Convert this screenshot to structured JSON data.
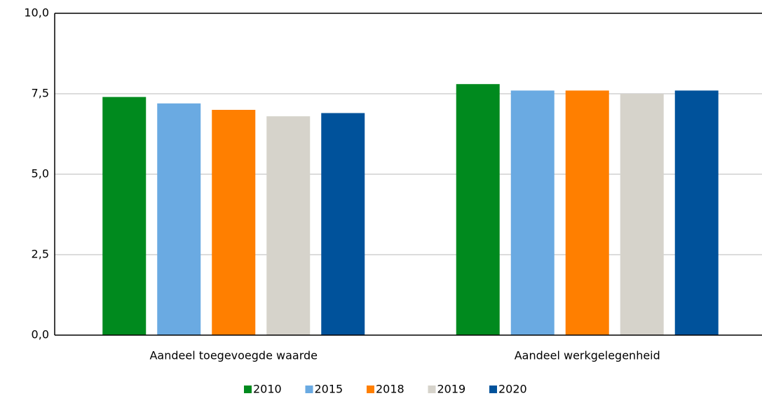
{
  "chart_data": {
    "type": "bar",
    "categories": [
      "Aandeel toegevoegde waarde",
      "Aandeel werkgelegenheid"
    ],
    "series": [
      {
        "name": "2010",
        "color": "#008a1e",
        "values": [
          7.4,
          7.8
        ]
      },
      {
        "name": "2015",
        "color": "#6aaae2",
        "values": [
          7.2,
          7.6
        ]
      },
      {
        "name": "2018",
        "color": "#ff7f00",
        "values": [
          7.0,
          7.6
        ]
      },
      {
        "name": "2019",
        "color": "#d6d3cb",
        "values": [
          6.8,
          7.5
        ]
      },
      {
        "name": "2020",
        "color": "#00529b",
        "values": [
          6.9,
          7.6
        ]
      }
    ],
    "ylim": [
      0,
      10
    ],
    "yticks": [
      {
        "value": 0,
        "label": "0,0"
      },
      {
        "value": 2.5,
        "label": "2,5"
      },
      {
        "value": 5,
        "label": "5,0"
      },
      {
        "value": 7.5,
        "label": "7,5"
      },
      {
        "value": 10,
        "label": "10,0"
      }
    ],
    "grid": true,
    "legend": "bottom"
  }
}
